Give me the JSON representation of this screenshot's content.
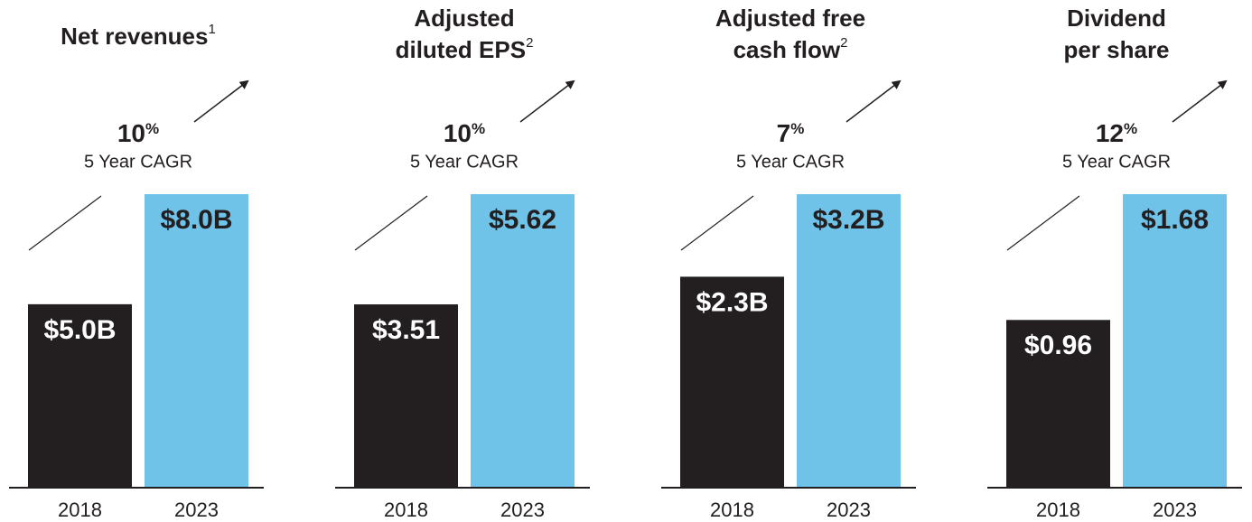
{
  "chart_data": [
    {
      "type": "bar",
      "title": [
        "Net revenues"
      ],
      "title_footnote": "1",
      "cagr": 10,
      "cagr_unit": "%",
      "cagr_label": "5 Year CAGR",
      "categories": [
        "2018",
        "2023"
      ],
      "values": [
        5.0,
        8.0
      ],
      "value_labels": [
        "$5.0B",
        "$8.0B"
      ],
      "colors": [
        "#231f20",
        "#6fc3e8"
      ]
    },
    {
      "type": "bar",
      "title": [
        "Adjusted",
        "diluted EPS"
      ],
      "title_footnote": "2",
      "cagr": 10,
      "cagr_unit": "%",
      "cagr_label": "5 Year CAGR",
      "categories": [
        "2018",
        "2023"
      ],
      "values": [
        3.51,
        5.62
      ],
      "value_labels": [
        "$3.51",
        "$5.62"
      ],
      "colors": [
        "#231f20",
        "#6fc3e8"
      ]
    },
    {
      "type": "bar",
      "title": [
        "Adjusted free",
        "cash flow"
      ],
      "title_footnote": "2",
      "cagr": 7,
      "cagr_unit": "%",
      "cagr_label": "5 Year CAGR",
      "categories": [
        "2018",
        "2023"
      ],
      "values": [
        2.3,
        3.2
      ],
      "value_labels": [
        "$2.3B",
        "$3.2B"
      ],
      "colors": [
        "#231f20",
        "#6fc3e8"
      ]
    },
    {
      "type": "bar",
      "title": [
        "Dividend",
        "per share"
      ],
      "cagr": 12,
      "cagr_unit": "%",
      "cagr_label": "5 Year CAGR",
      "categories": [
        "2018",
        "2023"
      ],
      "values": [
        0.96,
        1.68
      ],
      "value_labels": [
        "$0.96",
        "$1.68"
      ],
      "colors": [
        "#231f20",
        "#6fc3e8"
      ]
    }
  ]
}
